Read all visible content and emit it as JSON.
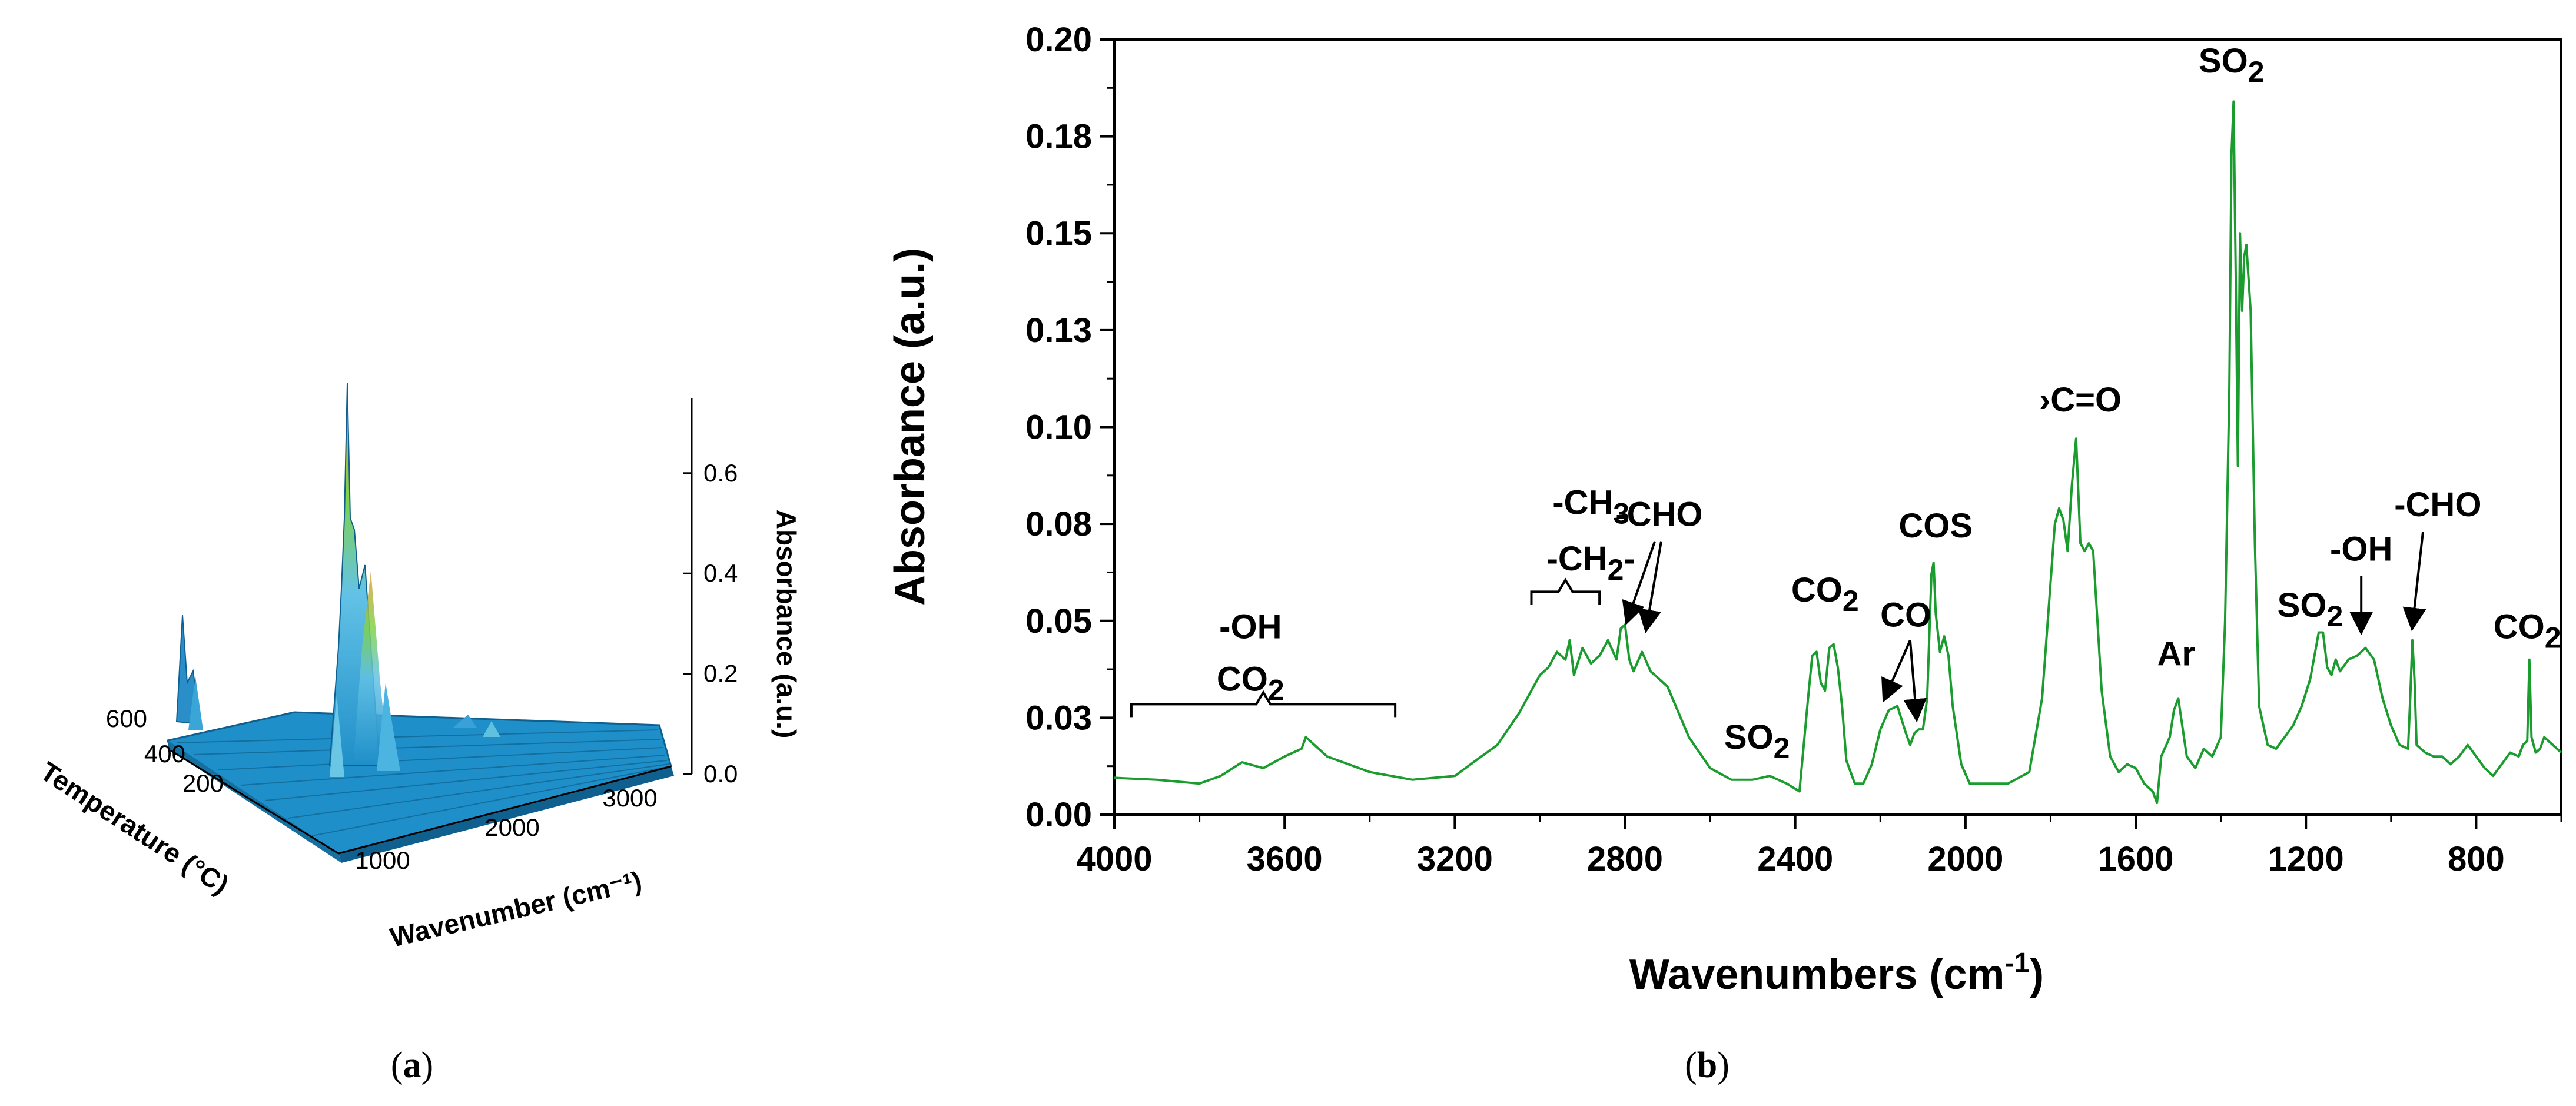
{
  "chart_data": [
    {
      "panel": "a",
      "type": "area",
      "zlabel": "Absorbance (a.u.)",
      "ylabel": "Temperature (°C)",
      "xlabel": "Wavenumber (cm⁻¹)",
      "z_ticks": [
        "0.0",
        "0.2",
        "0.4",
        "0.6"
      ],
      "temperature_ticks": [
        "600",
        "400",
        "200"
      ],
      "wavenumber_ticks": [
        "1000",
        "2000",
        "3000"
      ],
      "zlim": [
        0,
        0.75
      ],
      "colors": {
        "surface": "#1f8fc9",
        "surface_dark": "#0f5f8f",
        "peak_mid": "#7fd34a",
        "peak_top": "#e0a040"
      },
      "peaks": [
        {
          "wavenumber": 1370,
          "absorbance": 0.74
        },
        {
          "wavenumber": 1100,
          "absorbance": 0.2
        },
        {
          "wavenumber": 2350,
          "absorbance": 0.1
        },
        {
          "wavenumber": 3500,
          "absorbance": 0.04
        }
      ]
    },
    {
      "panel": "b",
      "type": "line",
      "xlabel": "Wavenumbers (cm",
      "xlabel_sup": "-1",
      "xlabel_close": ")",
      "ylabel": "Absorbance (a.u.)",
      "xlim": [
        4000,
        600
      ],
      "ylim": [
        0.0,
        0.2
      ],
      "x_ticks": [
        "4000",
        "3600",
        "3200",
        "2800",
        "2400",
        "2000",
        "1600",
        "1200",
        "800"
      ],
      "y_ticks": [
        "0.00",
        "0.03",
        "0.05",
        "0.08",
        "0.10",
        "0.13",
        "0.15",
        "0.18",
        "0.20"
      ],
      "line_color": "#1a9c2e",
      "series": [
        {
          "x": [
            4000,
            3900,
            3800,
            3750,
            3700,
            3650,
            3600,
            3560,
            3550,
            3500,
            3450,
            3400,
            3300,
            3200,
            3150,
            3100,
            3050,
            3000,
            2980,
            2960,
            2940,
            2930,
            2920,
            2900,
            2880,
            2860,
            2840,
            2820,
            2810,
            2800,
            2790,
            2780,
            2760,
            2740,
            2720,
            2700,
            2650,
            2600,
            2550,
            2500,
            2460,
            2420,
            2390,
            2370,
            2360,
            2350,
            2340,
            2330,
            2320,
            2310,
            2300,
            2290,
            2280,
            2260,
            2240,
            2220,
            2200,
            2180,
            2160,
            2140,
            2130,
            2120,
            2110,
            2100,
            2090,
            2080,
            2075,
            2070,
            2060,
            2050,
            2040,
            2030,
            2010,
            1990,
            1950,
            1900,
            1850,
            1820,
            1800,
            1790,
            1780,
            1770,
            1760,
            1750,
            1740,
            1730,
            1720,
            1710,
            1700,
            1690,
            1680,
            1660,
            1640,
            1620,
            1600,
            1580,
            1560,
            1550,
            1540,
            1520,
            1510,
            1500,
            1480,
            1460,
            1440,
            1420,
            1400,
            1390,
            1380,
            1375,
            1370,
            1365,
            1360,
            1355,
            1350,
            1345,
            1340,
            1330,
            1320,
            1310,
            1290,
            1270,
            1250,
            1230,
            1210,
            1190,
            1170,
            1160,
            1150,
            1140,
            1130,
            1120,
            1100,
            1080,
            1060,
            1040,
            1020,
            1000,
            980,
            960,
            955,
            950,
            945,
            940,
            920,
            900,
            880,
            860,
            840,
            820,
            800,
            780,
            760,
            740,
            720,
            700,
            690,
            680,
            675,
            670,
            660,
            650,
            640,
            620,
            600
          ],
          "y": [
            0.0095,
            0.009,
            0.008,
            0.01,
            0.0135,
            0.012,
            0.015,
            0.017,
            0.02,
            0.015,
            0.013,
            0.011,
            0.009,
            0.01,
            0.014,
            0.018,
            0.026,
            0.036,
            0.038,
            0.042,
            0.04,
            0.045,
            0.036,
            0.043,
            0.039,
            0.041,
            0.045,
            0.04,
            0.048,
            0.049,
            0.04,
            0.037,
            0.042,
            0.037,
            0.035,
            0.033,
            0.02,
            0.012,
            0.009,
            0.009,
            0.01,
            0.008,
            0.006,
            0.03,
            0.041,
            0.042,
            0.034,
            0.032,
            0.043,
            0.044,
            0.038,
            0.028,
            0.014,
            0.008,
            0.008,
            0.013,
            0.022,
            0.027,
            0.028,
            0.021,
            0.018,
            0.021,
            0.022,
            0.022,
            0.03,
            0.062,
            0.065,
            0.052,
            0.042,
            0.046,
            0.041,
            0.028,
            0.013,
            0.008,
            0.008,
            0.008,
            0.011,
            0.03,
            0.06,
            0.075,
            0.079,
            0.076,
            0.068,
            0.085,
            0.097,
            0.07,
            0.068,
            0.07,
            0.068,
            0.05,
            0.032,
            0.015,
            0.011,
            0.013,
            0.012,
            0.008,
            0.006,
            0.003,
            0.015,
            0.02,
            0.027,
            0.03,
            0.015,
            0.012,
            0.017,
            0.015,
            0.02,
            0.05,
            0.11,
            0.17,
            0.184,
            0.14,
            0.09,
            0.15,
            0.13,
            0.144,
            0.147,
            0.13,
            0.07,
            0.028,
            0.018,
            0.017,
            0.02,
            0.023,
            0.028,
            0.035,
            0.047,
            0.047,
            0.038,
            0.036,
            0.04,
            0.037,
            0.04,
            0.041,
            0.043,
            0.04,
            0.03,
            0.023,
            0.018,
            0.017,
            0.03,
            0.045,
            0.035,
            0.018,
            0.016,
            0.015,
            0.015,
            0.013,
            0.015,
            0.018,
            0.015,
            0.012,
            0.01,
            0.013,
            0.016,
            0.015,
            0.018,
            0.019,
            0.04,
            0.02,
            0.016,
            0.017,
            0.02,
            0.018,
            0.016
          ]
        }
      ],
      "annotations": [
        {
          "label_main": "-OH",
          "wavenumber": 3680,
          "absorbance": 0.0455
        },
        {
          "label_main": "CO",
          "label_sub": "2",
          "wavenumber": 3680,
          "absorbance": 0.032
        },
        {
          "label_main": "-CH",
          "label_sub": "3",
          "wavenumber": 2880,
          "absorbance": 0.0775
        },
        {
          "label_main": "-CH",
          "label_sub": "2",
          "label_after": "-",
          "wavenumber": 2880,
          "absorbance": 0.063
        },
        {
          "label_main": "-CHO",
          "wavenumber": 2720,
          "absorbance": 0.0745
        },
        {
          "label_main": "SO",
          "label_sub": "2",
          "wavenumber": 2490,
          "absorbance": 0.017
        },
        {
          "label_main": "CO",
          "label_sub": "2",
          "wavenumber": 2330,
          "absorbance": 0.055
        },
        {
          "label_main": "CO",
          "wavenumber": 2140,
          "absorbance": 0.0485
        },
        {
          "label_main": "COS",
          "wavenumber": 2070,
          "absorbance": 0.0715
        },
        {
          "label_main": "C=O",
          "label_pre": "›",
          "wavenumber": 1730,
          "absorbance": 0.104
        },
        {
          "label_main": "Ar",
          "wavenumber": 1505,
          "absorbance": 0.0385
        },
        {
          "label_main": "SO",
          "label_sub": "2",
          "wavenumber": 1375,
          "absorbance": 0.1915
        },
        {
          "label_main": "SO",
          "label_sub": "2",
          "wavenumber": 1190,
          "absorbance": 0.051
        },
        {
          "label_main": "-OH",
          "wavenumber": 1070,
          "absorbance": 0.0655
        },
        {
          "label_main": "-CHO",
          "wavenumber": 890,
          "absorbance": 0.077
        },
        {
          "label_main": "CO",
          "label_sub": "2",
          "wavenumber": 680,
          "absorbance": 0.0455
        }
      ]
    }
  ],
  "panel_labels": {
    "a": "a",
    "b": "b"
  }
}
